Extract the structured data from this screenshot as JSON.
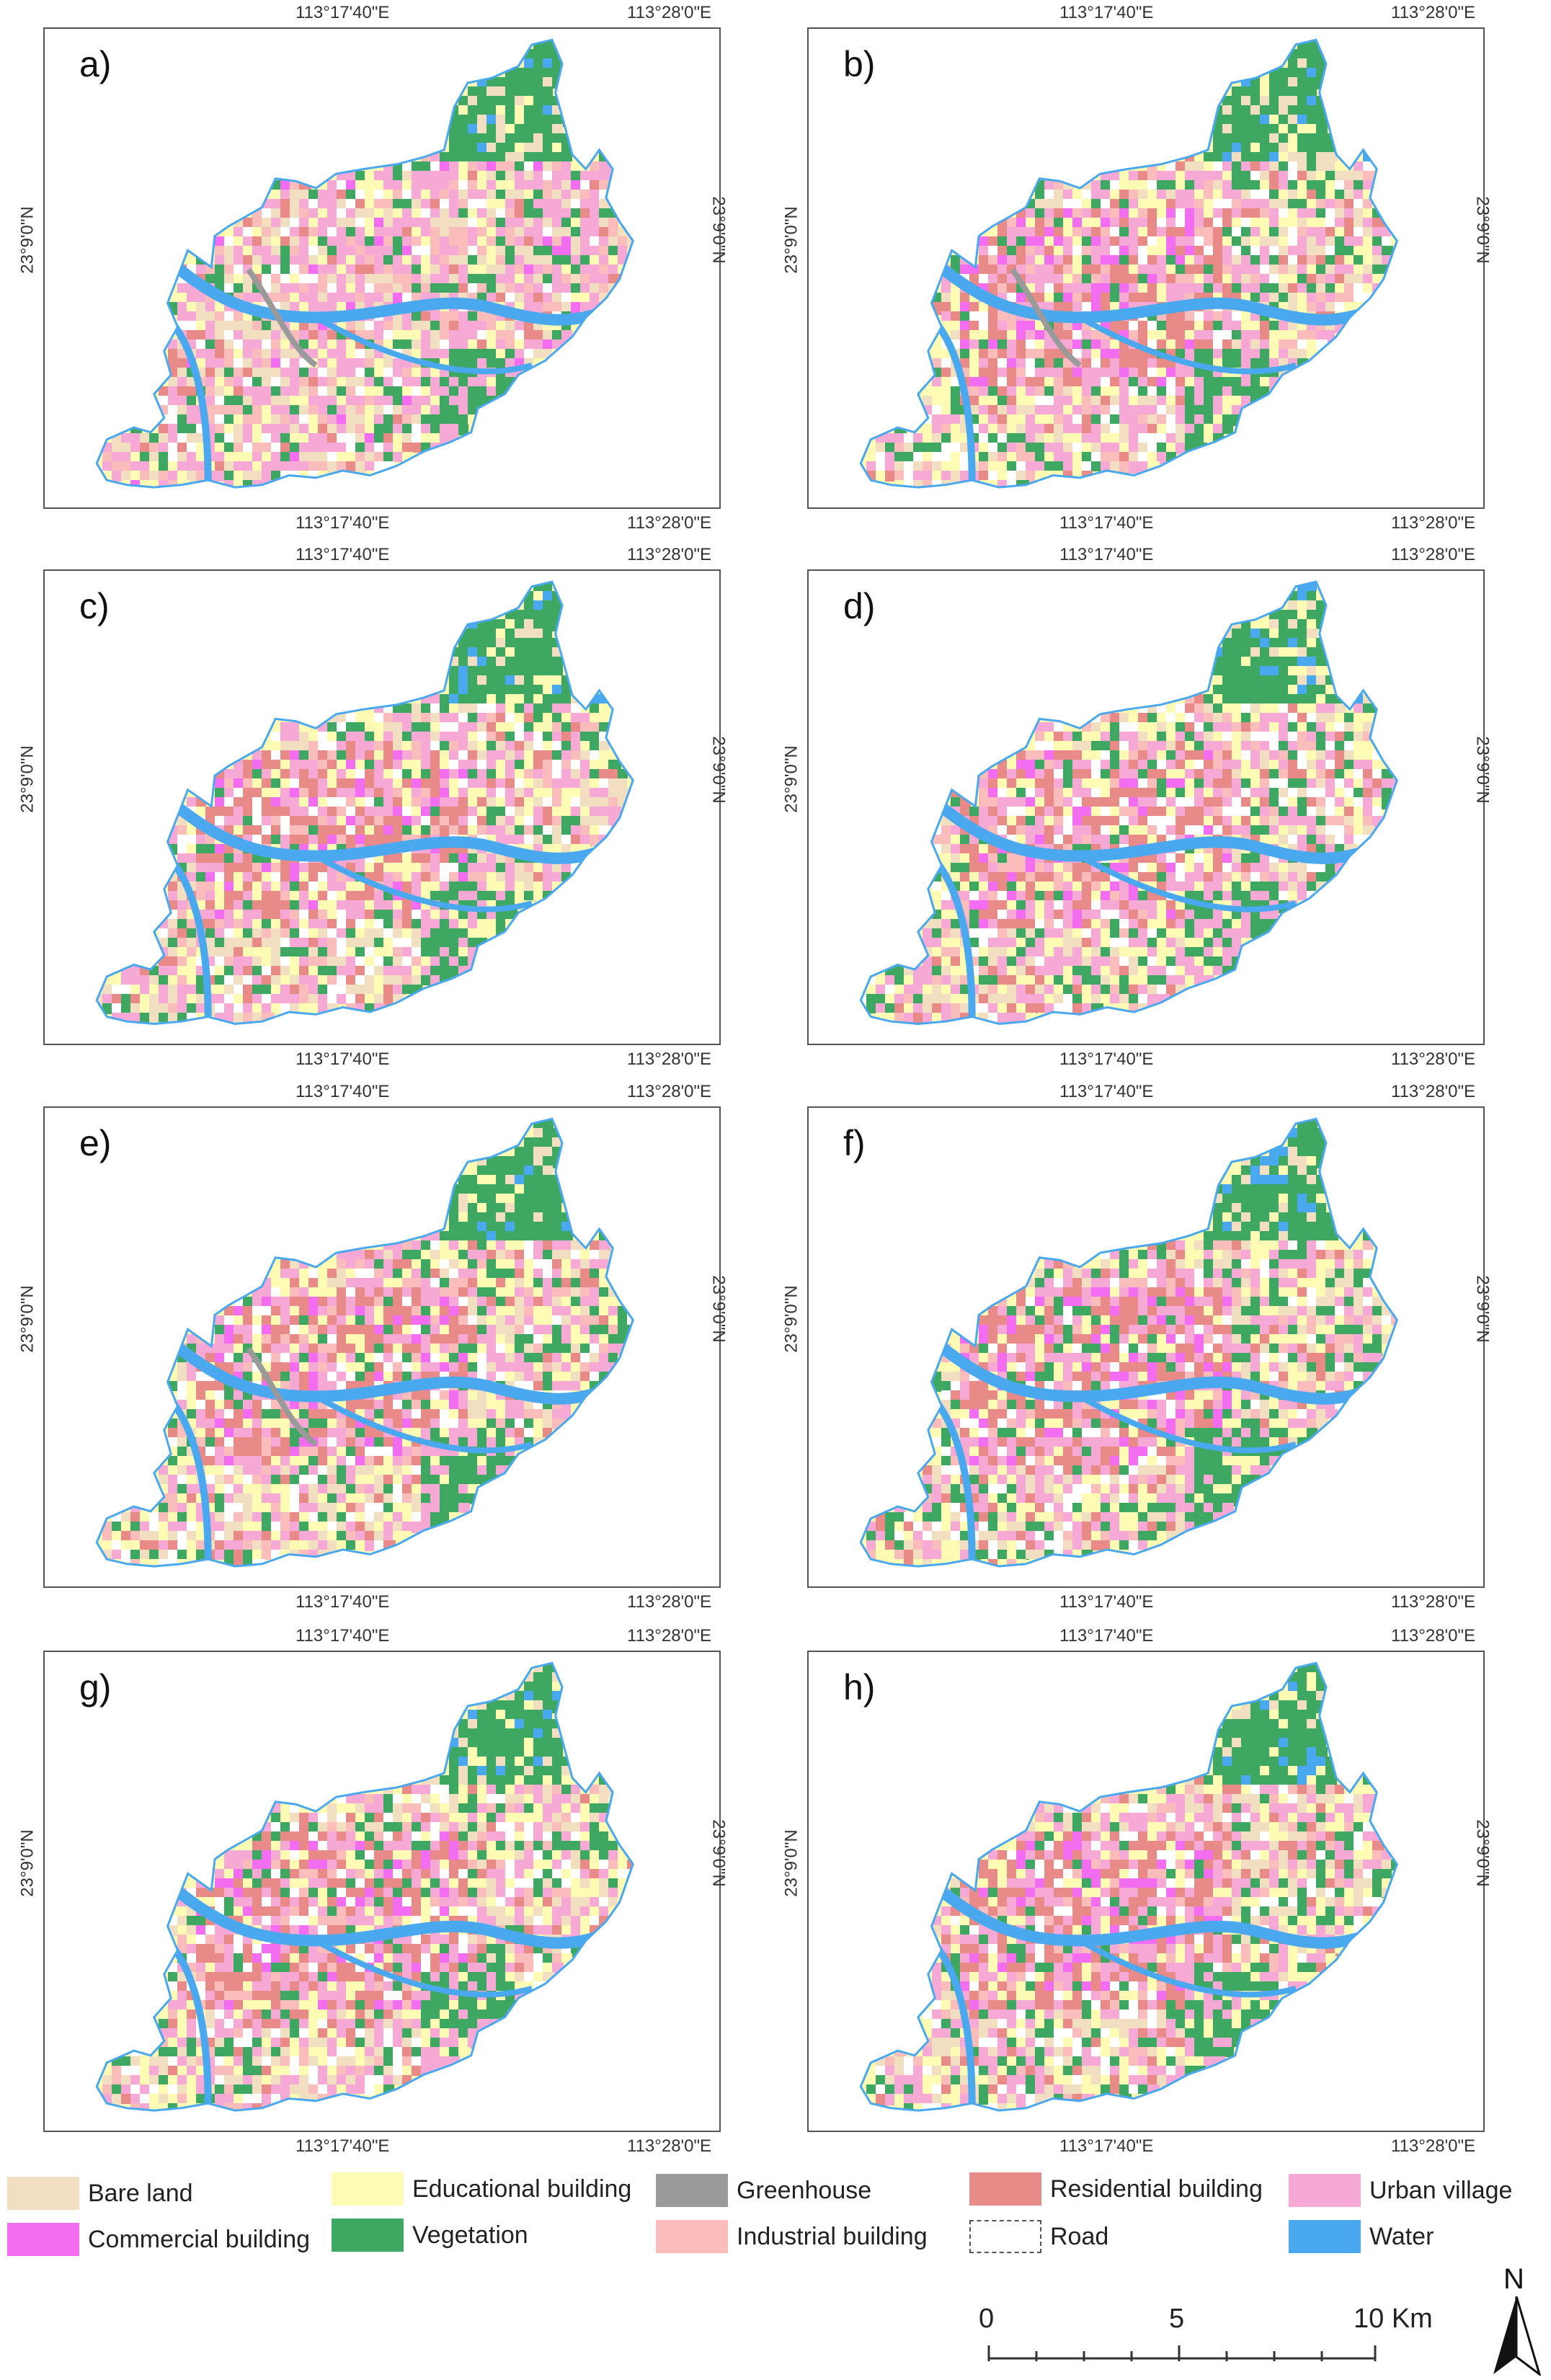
{
  "panels": [
    {
      "label": "a)",
      "lon_top_mid": "113°17'40\"E",
      "lon_top_right": "113°28'0\"E",
      "lon_bottom_mid": "113°17'40\"E",
      "lon_bottom_right": "113°28'0\"E",
      "lat_left": "23°9'0\"N",
      "lat_right": "23°9'0\"N"
    },
    {
      "label": "b)",
      "lon_top_mid": "113°17'40\"E",
      "lon_top_right": "113°28'0\"E",
      "lon_bottom_mid": "113°17'40\"E",
      "lon_bottom_right": "113°28'0\"E",
      "lat_left": "23°9'0\"N",
      "lat_right": "23°9'0\"N"
    },
    {
      "label": "c)",
      "lon_top_mid": "113°17'40\"E",
      "lon_top_right": "113°28'0\"E",
      "lon_bottom_mid": "113°17'40\"E",
      "lon_bottom_right": "113°28'0\"E",
      "lat_left": "23°9'0\"N",
      "lat_right": "23°9'0\"N"
    },
    {
      "label": "d)",
      "lon_top_mid": "113°17'40\"E",
      "lon_top_right": "113°28'0\"E",
      "lon_bottom_mid": "113°17'40\"E",
      "lon_bottom_right": "113°28'0\"E",
      "lat_left": "23°9'0\"N",
      "lat_right": "23°9'0\"N"
    },
    {
      "label": "e)",
      "lon_top_mid": "113°17'40\"E",
      "lon_top_right": "113°28'0\"E",
      "lon_bottom_mid": "113°17'40\"E",
      "lon_bottom_right": "113°28'0\"E",
      "lat_left": "23°9'0\"N",
      "lat_right": "23°9'0\"N"
    },
    {
      "label": "f)",
      "lon_top_mid": "113°17'40\"E",
      "lon_top_right": "113°28'0\"E",
      "lon_bottom_mid": "113°17'40\"E",
      "lon_bottom_right": "113°28'0\"E",
      "lat_left": "23°9'0\"N",
      "lat_right": "23°9'0\"N"
    },
    {
      "label": "g)",
      "lon_top_mid": "113°17'40\"E",
      "lon_top_right": "113°28'0\"E",
      "lon_bottom_mid": "113°17'40\"E",
      "lon_bottom_right": "113°28'0\"E",
      "lat_left": "23°9'0\"N",
      "lat_right": "23°9'0\"N"
    },
    {
      "label": "h)",
      "lon_top_mid": "113°17'40\"E",
      "lon_top_right": "113°28'0\"E",
      "lon_bottom_mid": "113°17'40\"E",
      "lon_bottom_right": "113°28'0\"E",
      "lat_left": "23°9'0\"N",
      "lat_right": "23°9'0\"N"
    }
  ],
  "legend": [
    {
      "name": "Bare land",
      "color": "#f2dfc1"
    },
    {
      "name": "Commercial building",
      "color": "#f26df0"
    },
    {
      "name": "Educational building",
      "color": "#fdfbb4"
    },
    {
      "name": "Vegetation",
      "color": "#3ea862"
    },
    {
      "name": "Greenhouse",
      "color": "#9a9a9a"
    },
    {
      "name": "Industrial building",
      "color": "#fbbcbc"
    },
    {
      "name": "Residential building",
      "color": "#e88a88"
    },
    {
      "name": "Road",
      "color": "#ffffff"
    },
    {
      "name": "Urban village",
      "color": "#f7a9d5"
    },
    {
      "name": "Water",
      "color": "#4aa8ef"
    }
  ],
  "scale_bar": {
    "t0": "0",
    "t5": "5",
    "t10": "10 Km"
  },
  "north_arrow": {
    "label": "N"
  }
}
